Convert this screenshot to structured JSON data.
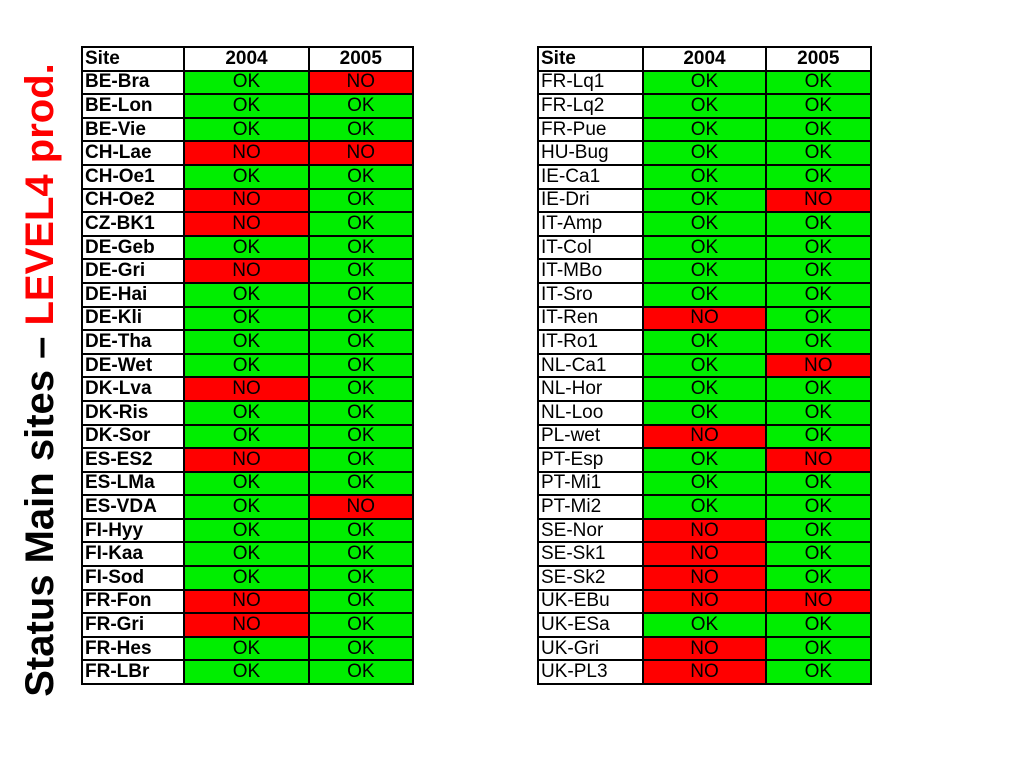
{
  "title": {
    "part1": "Status Main sites – ",
    "part2": "LEVEL4 prod."
  },
  "colors": {
    "ok": "#00ee00",
    "no": "#ff0000",
    "title_accent": "#ff0000"
  },
  "headers": [
    "Site",
    "2004",
    "2005"
  ],
  "tables": [
    {
      "rows": [
        [
          "BE-Bra",
          "OK",
          "NO"
        ],
        [
          "BE-Lon",
          "OK",
          "OK"
        ],
        [
          "BE-Vie",
          "OK",
          "OK"
        ],
        [
          "CH-Lae",
          "NO",
          "NO"
        ],
        [
          "CH-Oe1",
          "OK",
          "OK"
        ],
        [
          "CH-Oe2",
          "NO",
          "OK"
        ],
        [
          "CZ-BK1",
          "NO",
          "OK"
        ],
        [
          "DE-Geb",
          "OK",
          "OK"
        ],
        [
          "DE-Gri",
          "NO",
          "OK"
        ],
        [
          "DE-Hai",
          "OK",
          "OK"
        ],
        [
          "DE-Kli",
          "OK",
          "OK"
        ],
        [
          "DE-Tha",
          "OK",
          "OK"
        ],
        [
          "DE-Wet",
          "OK",
          "OK"
        ],
        [
          "DK-Lva",
          "NO",
          "OK"
        ],
        [
          "DK-Ris",
          "OK",
          "OK"
        ],
        [
          "DK-Sor",
          "OK",
          "OK"
        ],
        [
          "ES-ES2",
          "NO",
          "OK"
        ],
        [
          "ES-LMa",
          "OK",
          "OK"
        ],
        [
          "ES-VDA",
          "OK",
          "NO"
        ],
        [
          "FI-Hyy",
          "OK",
          "OK"
        ],
        [
          "FI-Kaa",
          "OK",
          "OK"
        ],
        [
          "FI-Sod",
          "OK",
          "OK"
        ],
        [
          "FR-Fon",
          "NO",
          "OK"
        ],
        [
          "FR-Gri",
          "NO",
          "OK"
        ],
        [
          "FR-Hes",
          "OK",
          "OK"
        ],
        [
          "FR-LBr",
          "OK",
          "OK"
        ]
      ]
    },
    {
      "rows": [
        [
          "FR-Lq1",
          "OK",
          "OK"
        ],
        [
          "FR-Lq2",
          "OK",
          "OK"
        ],
        [
          "FR-Pue",
          "OK",
          "OK"
        ],
        [
          "HU-Bug",
          "OK",
          "OK"
        ],
        [
          "IE-Ca1",
          "OK",
          "OK"
        ],
        [
          "IE-Dri",
          "OK",
          "NO"
        ],
        [
          "IT-Amp",
          "OK",
          "OK"
        ],
        [
          "IT-Col",
          "OK",
          "OK"
        ],
        [
          "IT-MBo",
          "OK",
          "OK"
        ],
        [
          "IT-Sro",
          "OK",
          "OK"
        ],
        [
          "IT-Ren",
          "NO",
          "OK"
        ],
        [
          "IT-Ro1",
          "OK",
          "OK"
        ],
        [
          "NL-Ca1",
          "OK",
          "NO"
        ],
        [
          "NL-Hor",
          "OK",
          "OK"
        ],
        [
          "NL-Loo",
          "OK",
          "OK"
        ],
        [
          "PL-wet",
          "NO",
          "OK"
        ],
        [
          "PT-Esp",
          "OK",
          "NO"
        ],
        [
          "PT-Mi1",
          "OK",
          "OK"
        ],
        [
          "PT-Mi2",
          "OK",
          "OK"
        ],
        [
          "SE-Nor",
          "NO",
          "OK"
        ],
        [
          "SE-Sk1",
          "NO",
          "OK"
        ],
        [
          "SE-Sk2",
          "NO",
          "OK"
        ],
        [
          "UK-EBu",
          "NO",
          "NO"
        ],
        [
          "UK-ESa",
          "OK",
          "OK"
        ],
        [
          "UK-Gri",
          "NO",
          "OK"
        ],
        [
          "UK-PL3",
          "NO",
          "OK"
        ]
      ]
    }
  ]
}
